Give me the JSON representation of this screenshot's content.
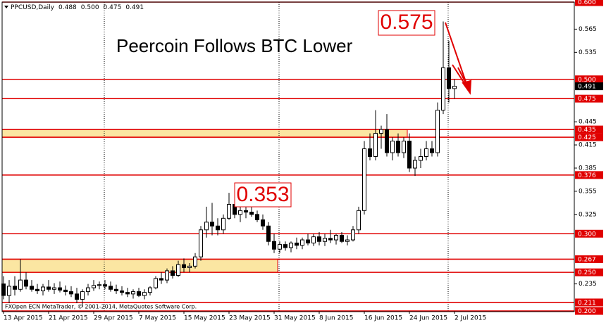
{
  "chart_data": {
    "type": "candlestick",
    "header": {
      "symbol": "PPCUSD,Daily",
      "ohlc": [
        "0.488",
        "0.500",
        "0.475",
        "0.491"
      ]
    },
    "title": "Peercoin Follows BTC Lower",
    "annotations": [
      "0.353",
      "0.575"
    ],
    "watermark": "FXOpen ECN MetaTrader, © 2001-2014, MetaQuotes Software Corp.",
    "categories": [
      "13 Apr 2015",
      null,
      null,
      null,
      null,
      null,
      null,
      null,
      "21 Apr 2015",
      null,
      null,
      null,
      null,
      null,
      null,
      null,
      "29 Apr 2015",
      null,
      null,
      null,
      null,
      null,
      null,
      null,
      "7 May 2015",
      null,
      null,
      null,
      null,
      null,
      null,
      null,
      "15 May 2015",
      null,
      null,
      null,
      null,
      null,
      null,
      null,
      "23 May 2015",
      null,
      null,
      null,
      null,
      null,
      null,
      null,
      "31 May 2015",
      null,
      null,
      null,
      null,
      null,
      null,
      null,
      "8 Jun 2015",
      null,
      null,
      null,
      null,
      null,
      null,
      null,
      "16 Jun 2015",
      null,
      null,
      null,
      null,
      null,
      null,
      null,
      "24 Jun 2015",
      null,
      null,
      null,
      null,
      null,
      null,
      null,
      "2 Jul 2015"
    ],
    "open": [
      0.235,
      0.22,
      0.232,
      0.228,
      0.24,
      0.232,
      0.228,
      0.226,
      0.231,
      0.228,
      0.23,
      0.227,
      0.225,
      0.222,
      0.215,
      0.225,
      0.23,
      0.233,
      0.234,
      0.232,
      0.228,
      0.226,
      0.224,
      0.222,
      0.225,
      0.22,
      0.224,
      0.23,
      0.242,
      0.24,
      0.252,
      0.246,
      0.26,
      0.256,
      0.258,
      0.27,
      0.305,
      0.315,
      0.31,
      0.305,
      0.32,
      0.338,
      0.325,
      0.33,
      0.328,
      0.325,
      0.318,
      0.31,
      0.29,
      0.28,
      0.286,
      0.282,
      0.288,
      0.285,
      0.292,
      0.288,
      0.296,
      0.29,
      0.294,
      0.292,
      0.298,
      0.29,
      0.292,
      0.305,
      0.33,
      0.41,
      0.4,
      0.43,
      0.435,
      0.405,
      0.42,
      0.405,
      0.42,
      0.385,
      0.395,
      0.4,
      0.41,
      0.405,
      0.46,
      0.515,
      0.488
    ],
    "high": [
      0.245,
      0.24,
      0.245,
      0.267,
      0.25,
      0.24,
      0.235,
      0.235,
      0.24,
      0.236,
      0.238,
      0.233,
      0.232,
      0.23,
      0.228,
      0.235,
      0.24,
      0.238,
      0.24,
      0.238,
      0.234,
      0.232,
      0.23,
      0.228,
      0.23,
      0.228,
      0.232,
      0.245,
      0.25,
      0.255,
      0.258,
      0.265,
      0.268,
      0.262,
      0.275,
      0.31,
      0.335,
      0.34,
      0.32,
      0.325,
      0.353,
      0.345,
      0.335,
      0.335,
      0.335,
      0.33,
      0.325,
      0.315,
      0.3,
      0.29,
      0.29,
      0.29,
      0.295,
      0.295,
      0.3,
      0.3,
      0.302,
      0.3,
      0.305,
      0.3,
      0.302,
      0.298,
      0.31,
      0.335,
      0.42,
      0.43,
      0.46,
      0.44,
      0.455,
      0.425,
      0.43,
      0.425,
      0.43,
      0.4,
      0.41,
      0.42,
      0.42,
      0.47,
      0.575,
      0.55,
      0.5
    ],
    "low": [
      0.215,
      0.21,
      0.22,
      0.225,
      0.228,
      0.225,
      0.222,
      0.22,
      0.225,
      0.222,
      0.224,
      0.22,
      0.218,
      0.21,
      0.205,
      0.22,
      0.226,
      0.228,
      0.228,
      0.225,
      0.222,
      0.22,
      0.218,
      0.216,
      0.218,
      0.215,
      0.22,
      0.228,
      0.235,
      0.236,
      0.242,
      0.244,
      0.25,
      0.25,
      0.255,
      0.265,
      0.295,
      0.298,
      0.298,
      0.3,
      0.318,
      0.32,
      0.315,
      0.32,
      0.322,
      0.315,
      0.305,
      0.285,
      0.275,
      0.275,
      0.278,
      0.276,
      0.28,
      0.28,
      0.285,
      0.284,
      0.285,
      0.284,
      0.288,
      0.286,
      0.288,
      0.285,
      0.29,
      0.3,
      0.325,
      0.395,
      0.395,
      0.41,
      0.4,
      0.395,
      0.4,
      0.398,
      0.38,
      0.375,
      0.385,
      0.395,
      0.4,
      0.4,
      0.455,
      0.47,
      0.475
    ],
    "close": [
      0.22,
      0.232,
      0.228,
      0.24,
      0.232,
      0.228,
      0.226,
      0.231,
      0.228,
      0.23,
      0.227,
      0.225,
      0.222,
      0.215,
      0.225,
      0.23,
      0.233,
      0.234,
      0.232,
      0.228,
      0.226,
      0.224,
      0.222,
      0.225,
      0.22,
      0.224,
      0.23,
      0.242,
      0.24,
      0.252,
      0.246,
      0.26,
      0.256,
      0.258,
      0.27,
      0.305,
      0.315,
      0.31,
      0.305,
      0.32,
      0.338,
      0.325,
      0.33,
      0.328,
      0.325,
      0.318,
      0.31,
      0.29,
      0.28,
      0.286,
      0.282,
      0.288,
      0.285,
      0.292,
      0.288,
      0.296,
      0.29,
      0.294,
      0.292,
      0.298,
      0.29,
      0.292,
      0.305,
      0.33,
      0.41,
      0.4,
      0.43,
      0.435,
      0.405,
      0.42,
      0.405,
      0.42,
      0.385,
      0.395,
      0.4,
      0.41,
      0.405,
      0.46,
      0.515,
      0.488,
      0.491
    ],
    "ylim": [
      0.2,
      0.6
    ],
    "yticks": [
      0.565,
      0.535,
      0.445,
      0.415,
      0.385,
      0.355,
      0.325,
      0.235
    ],
    "levels": [
      {
        "value": 0.6,
        "label": "0.600"
      },
      {
        "value": 0.5,
        "label": "0.500"
      },
      {
        "value": 0.475,
        "label": "0.475"
      },
      {
        "value": 0.435,
        "label": "0.435"
      },
      {
        "value": 0.425,
        "label": "0.425"
      },
      {
        "value": 0.376,
        "label": "0.376"
      },
      {
        "value": 0.3,
        "label": "0.300"
      },
      {
        "value": 0.267,
        "label": "0.267"
      },
      {
        "value": 0.25,
        "label": "0.250"
      },
      {
        "value": 0.211,
        "label": "0.211"
      },
      {
        "value": 0.2,
        "label": "0.200"
      }
    ],
    "level_color": "#e00000",
    "zones": [
      {
        "from": 0.425,
        "to": 0.435
      },
      {
        "from": 0.25,
        "to": 0.267
      }
    ],
    "zone_color": "#fbe6a2"
  }
}
